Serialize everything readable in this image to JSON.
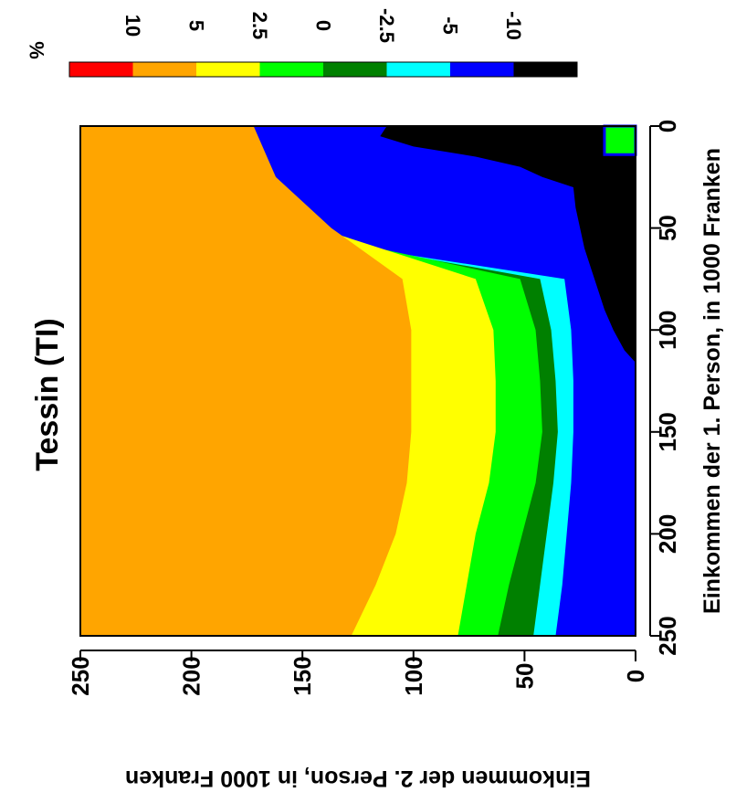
{
  "chart_data": {
    "type": "heatmap",
    "title": "Tessin (TI)",
    "xlabel": "Einkommen der 1. Person, in 1000 Franken",
    "ylabel": "Einkommen der 2. Person, in 1000 Franken",
    "xlim": [
      0,
      250
    ],
    "ylim": [
      0,
      250
    ],
    "x_ticks": [
      "0",
      "50",
      "100",
      "150",
      "200",
      "250"
    ],
    "y_ticks": [
      "0",
      "50",
      "100",
      "150",
      "200",
      "250"
    ],
    "rotation": "figure rotated 90 degrees clockwise",
    "legend": {
      "unit": "%",
      "placement": "top",
      "bins": [
        {
          "color": "#ff0000",
          "range": [
            5,
            10
          ]
        },
        {
          "color": "#ffa500",
          "range": [
            2.5,
            5
          ]
        },
        {
          "color": "#ffff00",
          "range": [
            0,
            2.5
          ]
        },
        {
          "color": "#00ff00",
          "range": [
            -2.5,
            0
          ]
        },
        {
          "color": "#008000",
          "range": [
            -5,
            -2.5
          ]
        },
        {
          "color": "#00ffff",
          "range": [
            -10,
            -5
          ]
        },
        {
          "color": "#0000ff",
          "range": [
            null,
            -10
          ]
        },
        {
          "color": "#000000",
          "range": [
            null,
            null
          ]
        }
      ],
      "labels": [
        "10",
        "5",
        "2.5",
        "0",
        "-2.5",
        "-5",
        "-10"
      ]
    },
    "region_boundaries": {
      "note": "Each curve gives, for income of person 1 (x, k CHF), the income of person 2 (y, k CHF) at which the zone changes; zones are listed from high y to low y.",
      "x": [
        0,
        25,
        50,
        75,
        100,
        125,
        150,
        175,
        200,
        225,
        250
      ],
      "orange_to_yellow": [
        172,
        162,
        137,
        105,
        101,
        101,
        101,
        103,
        108,
        117,
        128
      ],
      "yellow_to_green": [
        222,
        196,
        143,
        72,
        64,
        63,
        63,
        66,
        72,
        76,
        80
      ],
      "green_to_darkgreen": [
        232,
        215,
        158,
        52,
        45,
        43,
        42,
        45,
        51,
        57,
        62
      ],
      "darkgreen_to_cyan": [
        242,
        223,
        172,
        43,
        38,
        36,
        35,
        37,
        40,
        43,
        46
      ],
      "cyan_to_blue": [
        250,
        234,
        181,
        32,
        29,
        28,
        28,
        29,
        31,
        33,
        36
      ]
    },
    "black_region": {
      "x": [
        0,
        5,
        10,
        15,
        20,
        25,
        30,
        40,
        50,
        60,
        70,
        80,
        90,
        100,
        110,
        116
      ],
      "y_max": [
        112,
        115,
        100,
        72,
        52,
        42,
        28,
        27,
        25,
        23,
        20,
        17,
        14,
        10,
        5,
        0
      ]
    },
    "small_patch": {
      "x": [
        0,
        14
      ],
      "y": [
        0,
        14
      ],
      "fill": "#00ff00",
      "border": "#0000ff"
    }
  }
}
